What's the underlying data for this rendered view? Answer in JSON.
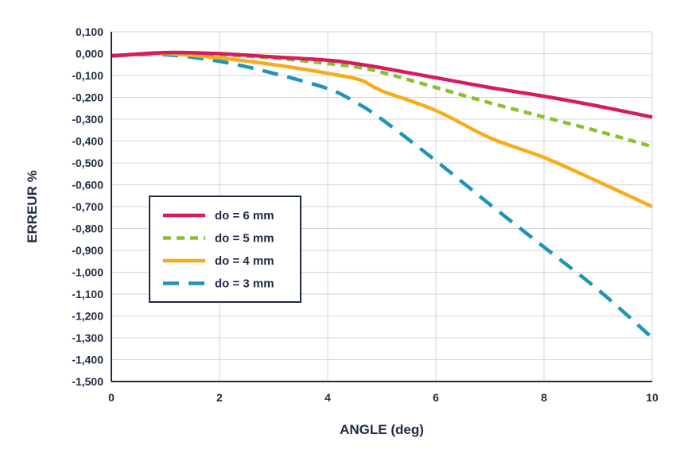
{
  "chart_data": {
    "type": "line",
    "title": "",
    "xlabel": "ANGLE (deg)",
    "ylabel": "ERREUR %",
    "xlim": [
      0,
      10
    ],
    "ylim": [
      -1.5,
      0.1
    ],
    "x_ticks": [
      0,
      2,
      4,
      6,
      8,
      10
    ],
    "x_tick_labels": [
      "0",
      "2",
      "4",
      "6",
      "8",
      "10"
    ],
    "y_ticks": [
      0.1,
      0,
      -0.1,
      -0.2,
      -0.3,
      -0.4,
      -0.5,
      -0.6,
      -0.7,
      -0.8,
      -0.9,
      -1.0,
      -1.1,
      -1.2,
      -1.3,
      -1.4,
      -1.5
    ],
    "y_tick_labels": [
      "0,100",
      "0,000",
      "-0,100",
      "-0,200",
      "-0,300",
      "-0,400",
      "-0,500",
      "-0,600",
      "-0,700",
      "-0,800",
      "-0,900",
      "-1,000",
      "-1,100",
      "-1,200",
      "-1,300",
      "-1,400",
      "-1,500"
    ],
    "grid": true,
    "legend_position": "left-middle",
    "series": [
      {
        "name": "do = 6 mm",
        "color": "#d81b5f",
        "dash": "solid",
        "x": [
          0,
          1,
          2,
          3,
          4,
          4.5,
          5,
          6,
          7,
          8,
          9,
          10
        ],
        "y": [
          -0.01,
          0.005,
          0.0,
          -0.015,
          -0.03,
          -0.045,
          -0.065,
          -0.11,
          -0.155,
          -0.195,
          -0.24,
          -0.29
        ]
      },
      {
        "name": "do = 5 mm",
        "color": "#8bbf2e",
        "dash": "short",
        "x": [
          0,
          1,
          2,
          3,
          4,
          4.5,
          5,
          6,
          7,
          8,
          9,
          10
        ],
        "y": [
          -0.01,
          0.003,
          -0.005,
          -0.02,
          -0.045,
          -0.06,
          -0.085,
          -0.155,
          -0.225,
          -0.29,
          -0.355,
          -0.425
        ]
      },
      {
        "name": "do = 4 mm",
        "color": "#f7ad1b",
        "dash": "solid",
        "x": [
          0,
          1,
          2,
          3,
          4,
          4.6,
          5,
          6,
          7,
          8,
          9,
          10
        ],
        "y": [
          -0.01,
          0.0,
          -0.02,
          -0.05,
          -0.09,
          -0.12,
          -0.17,
          -0.26,
          -0.385,
          -0.475,
          -0.585,
          -0.7
        ]
      },
      {
        "name": "do = 3 mm",
        "color": "#1f93b8",
        "dash": "long",
        "x": [
          0,
          1,
          2,
          3,
          4,
          4.5,
          5,
          6,
          7,
          8,
          9,
          10
        ],
        "y": [
          -0.01,
          -0.005,
          -0.035,
          -0.09,
          -0.16,
          -0.22,
          -0.3,
          -0.49,
          -0.69,
          -0.885,
          -1.08,
          -1.3
        ]
      }
    ]
  }
}
